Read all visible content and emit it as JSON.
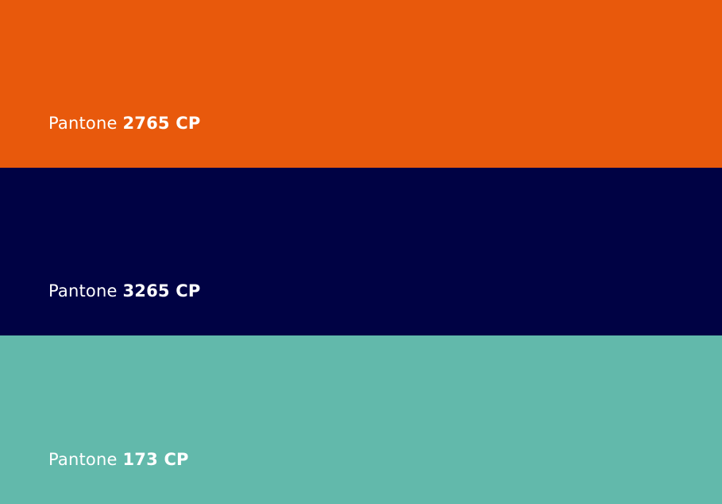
{
  "swatches": [
    {
      "prefix": "Pantone",
      "code": "2765 CP",
      "color": "#E8590C"
    },
    {
      "prefix": "Pantone",
      "code": "3265 CP",
      "color": "#000244"
    },
    {
      "prefix": "Pantone",
      "code": "173 CP",
      "color": "#62B9AB"
    }
  ]
}
